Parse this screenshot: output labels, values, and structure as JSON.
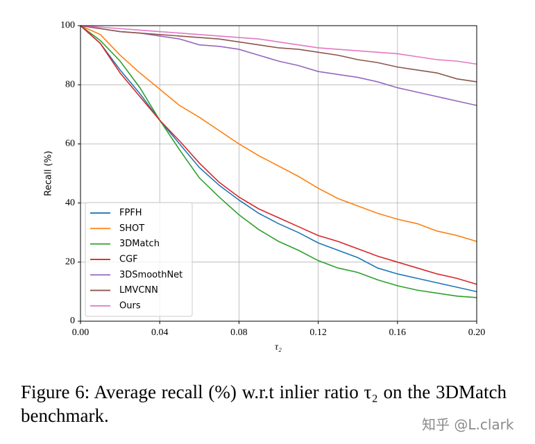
{
  "chart_data": {
    "type": "line",
    "x_label": "τ₂",
    "y_label": "Recall (%)",
    "x": [
      0,
      0.01,
      0.02,
      0.03,
      0.04,
      0.05,
      0.06,
      0.07,
      0.08,
      0.09,
      0.1,
      0.11,
      0.12,
      0.13,
      0.14,
      0.15,
      0.16,
      0.17,
      0.18,
      0.19,
      0.2
    ],
    "xlim": [
      0,
      0.2
    ],
    "xticks": [
      {
        "value": 0,
        "label": "0.00"
      },
      {
        "value": 0.04,
        "label": "0.04"
      },
      {
        "value": 0.08,
        "label": "0.08"
      },
      {
        "value": 0.12,
        "label": "0.12"
      },
      {
        "value": 0.16,
        "label": "0.16"
      },
      {
        "value": 0.2,
        "label": "0.20"
      }
    ],
    "ylim": [
      0,
      100
    ],
    "yticks": [
      0,
      20,
      40,
      60,
      80,
      100
    ],
    "grid": true,
    "legend": "lower left",
    "series": [
      {
        "name": "FPFH",
        "color": "#1f77b4",
        "values": [
          100,
          94,
          85,
          77,
          68,
          60,
          52,
          46,
          41,
          36.5,
          33,
          30,
          26.5,
          24,
          21.5,
          18,
          16,
          14.5,
          13,
          11.5,
          10
        ]
      },
      {
        "name": "SHOT",
        "color": "#ff7f0e",
        "values": [
          100,
          97,
          90,
          84,
          78.5,
          73,
          69,
          64.5,
          60,
          56,
          52.5,
          49,
          45,
          41.5,
          39,
          36.5,
          34.5,
          33,
          30.5,
          29,
          27
        ]
      },
      {
        "name": "3DMatch",
        "color": "#2ca02c",
        "values": [
          100,
          95,
          88,
          79,
          68,
          58,
          48.5,
          42,
          36,
          31,
          27,
          24,
          20.5,
          18,
          16.5,
          14,
          12,
          10.5,
          9.5,
          8.5,
          8
        ]
      },
      {
        "name": "CGF",
        "color": "#d62728",
        "values": [
          100,
          94,
          84,
          76,
          68,
          61,
          53.5,
          47,
          42,
          38,
          35,
          32,
          29,
          27,
          24.5,
          22,
          20,
          18,
          16,
          14.5,
          12.5
        ]
      },
      {
        "name": "3DSmoothNet",
        "color": "#9467bd",
        "values": [
          100,
          99,
          98,
          97.5,
          96.5,
          95.5,
          93.5,
          93,
          92,
          90,
          88,
          86.5,
          84.5,
          83.5,
          82.5,
          81,
          79,
          77.5,
          76,
          74.5,
          73
        ]
      },
      {
        "name": "LMVCNN",
        "color": "#8c564b",
        "values": [
          100,
          99,
          98,
          97.5,
          97,
          96.5,
          96,
          95.5,
          94.5,
          93.5,
          92.5,
          92,
          91,
          90,
          88.5,
          87.5,
          86,
          85,
          84,
          82,
          81
        ]
      },
      {
        "name": "Ours",
        "color": "#e377c2",
        "values": [
          100,
          99.5,
          99,
          98.5,
          98,
          97.5,
          97,
          96.5,
          96,
          95.5,
          94.5,
          93.5,
          92.5,
          92,
          91.5,
          91,
          90.5,
          89.5,
          88.5,
          88,
          87
        ]
      }
    ]
  },
  "caption": "Figure 6: Average recall (%) w.r.t inlier ratio τ₂ on the 3DMatch benchmark.",
  "watermark": "知乎 @L.clark"
}
